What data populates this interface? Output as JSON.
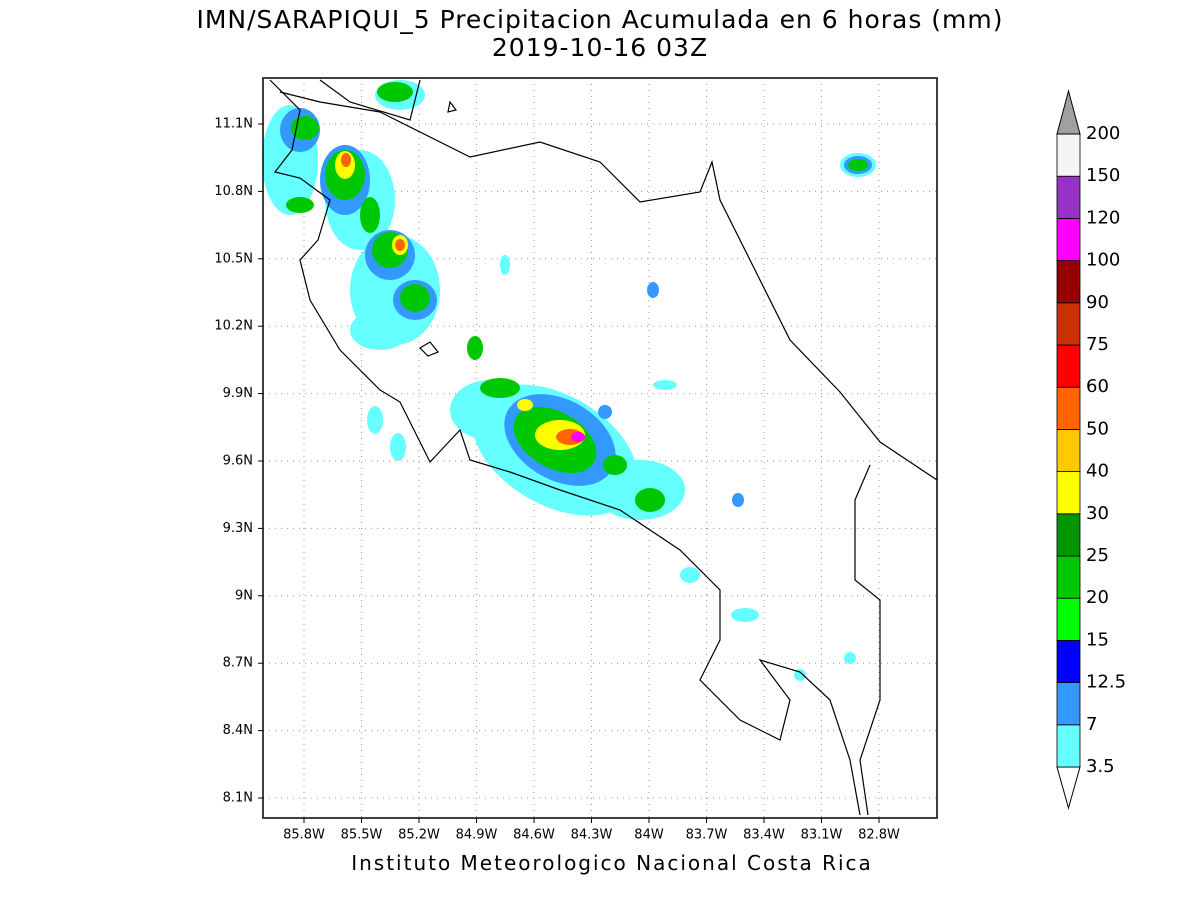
{
  "title": "IMN/SARAPIQUI_5 Precipitacion Acumulada en 6 horas (mm)",
  "subtitle": "2019-10-16 03Z",
  "map": {
    "lat_labels": [
      "11.1N",
      "10.8N",
      "10.5N",
      "10.2N",
      "9.9N",
      "9.6N",
      "9.3N",
      "9N",
      "8.7N",
      "8.4N",
      "8.1N"
    ],
    "lon_labels": [
      "85.8W",
      "85.5W",
      "85.2W",
      "84.9W",
      "84.6W",
      "84.3W",
      "84W",
      "83.7W",
      "83.4W",
      "83.1W",
      "82.8W"
    ]
  },
  "colorbar": {
    "levels": [
      3.5,
      7,
      12.5,
      15,
      20,
      25,
      30,
      40,
      50,
      60,
      75,
      90,
      100,
      120,
      150,
      200
    ],
    "colors": [
      "#66ffff",
      "#3399ff",
      "#0000ff",
      "#00ff00",
      "#00c800",
      "#009600",
      "#ffff00",
      "#ffc800",
      "#ff6400",
      "#ff0000",
      "#c83200",
      "#960000",
      "#ff00ff",
      "#9632c8",
      "#f5f5f5"
    ],
    "under_color": "#ffffff",
    "over_color": "#a0a0a0"
  },
  "footer": "Instituto Meteorologico Nacional Costa Rica"
}
